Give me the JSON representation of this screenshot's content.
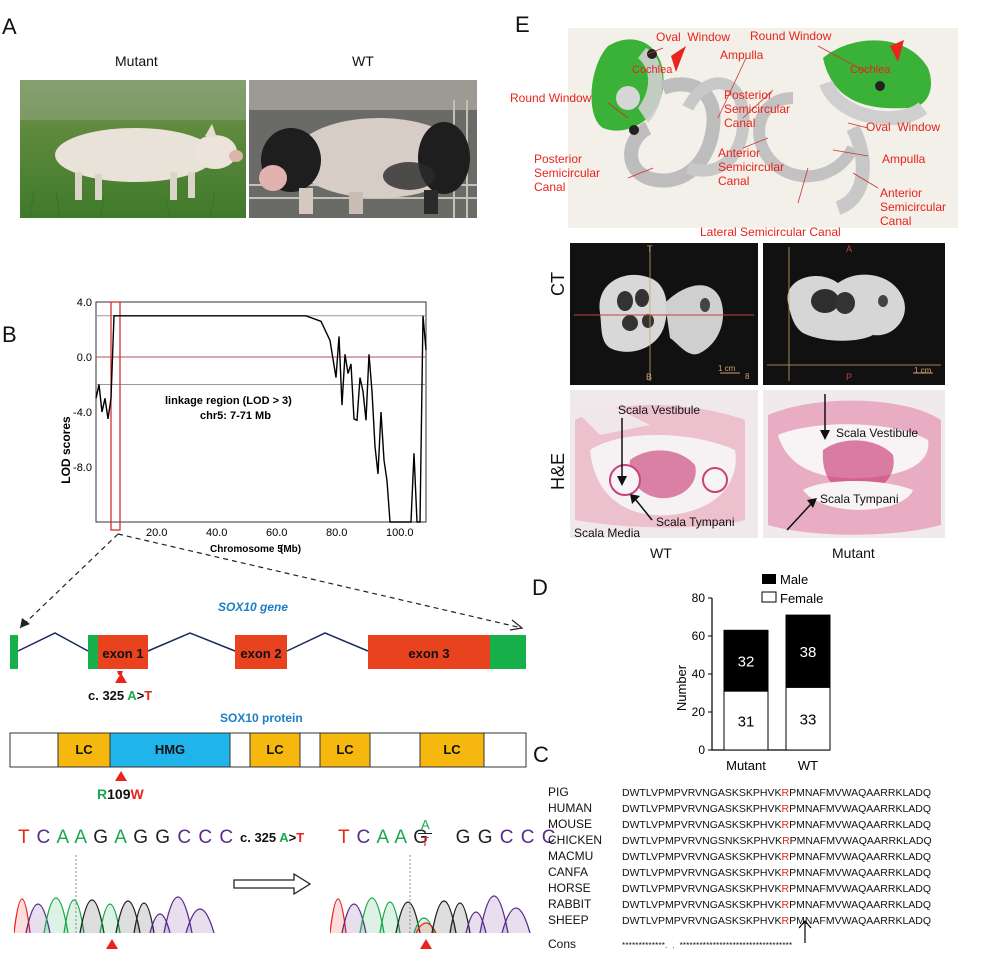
{
  "panels": {
    "A": "A",
    "B": "B",
    "C": "C",
    "D": "D",
    "E": "E"
  },
  "panelA": {
    "left_label": "Mutant",
    "right_label": "WT"
  },
  "panelB": {
    "chart_data": {
      "type": "line",
      "xlabel": "Chromosome 5",
      "xunit": "(Mb)",
      "ylabel": "LOD  scores",
      "xticks": [
        "20.0",
        "40.0",
        "60.0",
        "80.0",
        "100.0"
      ],
      "yticks": [
        "4.0",
        "0.0",
        "-4.0",
        "-8.0"
      ],
      "xlim": [
        0,
        110
      ],
      "ylim": [
        -12,
        4
      ],
      "annotation_line1": "linkage region (LOD > 3)",
      "annotation_line2": "chr5: 7-71 Mb",
      "series": [
        {
          "x": [
            0,
            1,
            2,
            3,
            4,
            5,
            6,
            7,
            8,
            9,
            10,
            70,
            75,
            78,
            80,
            81,
            82,
            83,
            84,
            85,
            86,
            87,
            88,
            89,
            90,
            91,
            92,
            93,
            94,
            95,
            96,
            97,
            98,
            99,
            100,
            101,
            102,
            103,
            104,
            105,
            106,
            107,
            108,
            109,
            110
          ],
          "y": [
            -3.0,
            -2.0,
            -4.0,
            -3.0,
            -4.5,
            -3.0,
            3.0,
            3.0,
            3.0,
            3.0,
            3.0,
            3.0,
            2.6,
            1.2,
            -1.5,
            1.5,
            -3.5,
            0.2,
            -1.2,
            -0.5,
            -4.5,
            -4.6,
            -1.5,
            -2.5,
            -4.6,
            0.2,
            -2.5,
            -6.5,
            -8.5,
            -4.0,
            -7.5,
            -9.0,
            -12,
            -12,
            -12,
            -12,
            -12,
            -12,
            -12,
            -12,
            -7,
            -12,
            -12,
            3,
            0.5
          ]
        }
      ],
      "ref_lines": [
        3.0,
        0.0,
        -2.0
      ]
    }
  },
  "gene": {
    "title": "SOX10 gene",
    "exons": [
      "exon 1",
      "exon 2",
      "exon 3"
    ],
    "mutation_prefix": "c. 325 ",
    "mut_a": "A",
    "mut_sep": ">",
    "mut_t": "T"
  },
  "protein": {
    "title": "SOX10 protein",
    "domains": [
      "LC",
      "HMG",
      "LC",
      "LC",
      "LC"
    ],
    "mut_r": "R",
    "mut_pos": "109",
    "mut_w": "W"
  },
  "chromatogram": {
    "left_bases": [
      "T",
      "C",
      "A",
      "A",
      "G",
      "A",
      "G",
      "G",
      "C",
      "C",
      "C"
    ],
    "right_bases": [
      "T",
      "C",
      "A",
      "A",
      "G",
      "",
      "G",
      "G",
      "C",
      "C",
      "C"
    ],
    "het_top": "A",
    "het_bottom": "T",
    "arrow_label_prefix": "c. 325 ",
    "arrow_a": "A",
    "arrow_sep": ">",
    "arrow_t": "T"
  },
  "panelC": {
    "species": [
      "PIG",
      "HUMAN",
      "MOUSE",
      "CHICKEN",
      "MACMU",
      "CANFA",
      "HORSE",
      "RABBIT",
      "SHEEP"
    ],
    "seq_pre": [
      "DWTLVPMPVRVNGASKSKPHVK",
      "DWTLVPMPVRVNGASKSKPHVK",
      "DWTLVPMPVRVNGASKSKPHVK",
      "DWTLVPMPVRVNGSNKSKPHVK",
      "DWTLVPMPVRVNGASKSKPHVK",
      "DWTLVPMPVRVNGASKSKPHVK",
      "DWTLVPMPVRVNGASKSKPHVK",
      "DWTLVPMPVRVNGASKSKPHVK",
      "DWTLVPMPVRVNGASKSKPHVK"
    ],
    "seq_r": "R",
    "seq_post": [
      "PMNAFMVWAQAARRKLADQ",
      "PMNAFMVWAQAARRKLADQ",
      "PMNAFMVWAQAARRKLADQ",
      "PMNAFMVWAQAARRKLADQ",
      "PMNAFMVWAQAARRKLADQ",
      "PMNAFMVWAQAARRKLADQ",
      "PMNAFMVWAQAARRKLADQ",
      "PMNAFMVWAQAARRKLADQ",
      "PMNAFMVWAQAARRKLADQ"
    ],
    "cons_label": "Cons",
    "cons": "*************.  .  **********************************"
  },
  "panelD": {
    "chart_data": {
      "type": "bar",
      "categories": [
        "Mutant",
        "WT"
      ],
      "series": [
        {
          "name": "Female",
          "values": [
            31,
            33
          ],
          "color": "#ffffff"
        },
        {
          "name": "Male",
          "values": [
            32,
            38
          ],
          "color": "#000000"
        }
      ],
      "ylabel": "Number",
      "yticks": [
        "0",
        "20",
        "40",
        "60",
        "80"
      ],
      "ylim": [
        0,
        80
      ]
    }
  },
  "panelE": {
    "labels": {
      "oval_window": "Oval  Window",
      "round_window": "Round Window",
      "cochlea": "Cochlea",
      "ampulla": "Ampulla",
      "posterior": "Posterior\nSemicircular\nCanal",
      "anterior": "Anterior\nSemicircular\nCanal",
      "lateral": "Lateral Semicircular Canal"
    },
    "ct_label": "CT",
    "he_label": "H&E",
    "ct_left_marks": [
      "T",
      "B",
      "1 cm",
      "8"
    ],
    "ct_right_marks": [
      "A",
      "P",
      "1 cm"
    ],
    "he_labels": {
      "vestibule": "Scala Vestibule",
      "tympani": "Scala Tympani",
      "media": "Scala Media"
    },
    "bottom_left": "WT",
    "bottom_right": "Mutant"
  },
  "colors": {
    "red": "#e8241c",
    "green": "#1aa84f",
    "blue": "#1a7fc4",
    "exon": "#e8421f",
    "utr": "#18b04a",
    "lc": "#f6b80e",
    "hmg": "#1fb4ea",
    "seq_red": "#e3261c"
  }
}
